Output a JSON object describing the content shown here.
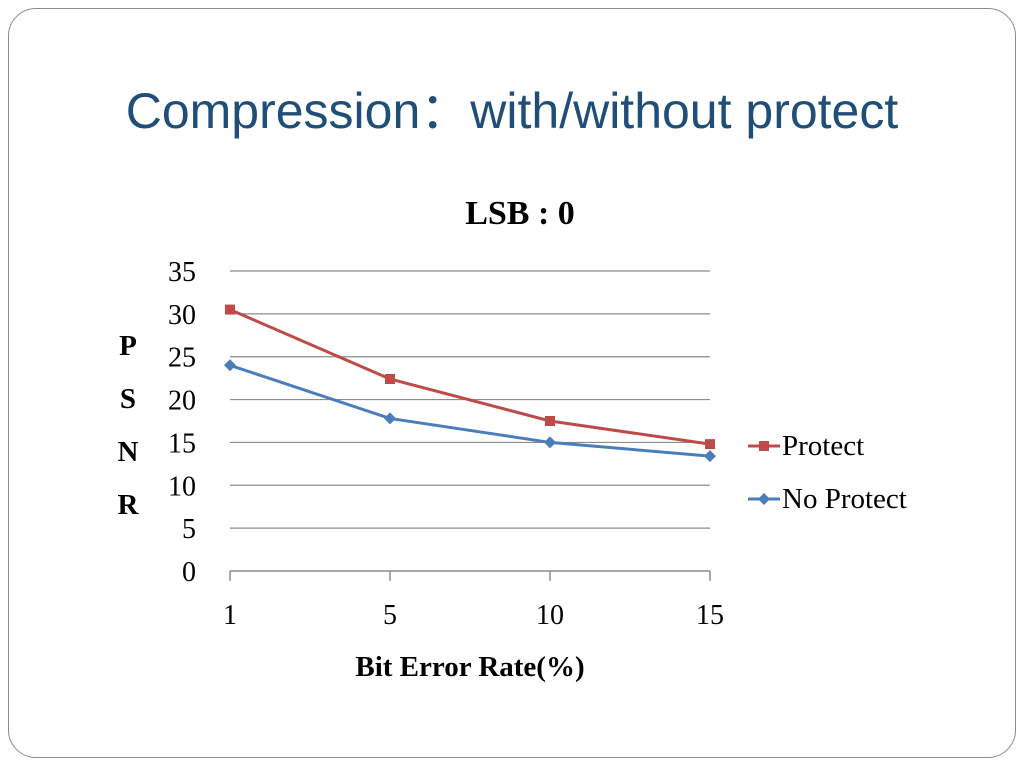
{
  "slide": {
    "title": "Compression：with/without protect"
  },
  "chart_data": {
    "type": "line",
    "title": "LSB : 0",
    "xlabel": "Bit Error Rate(%)",
    "ylabel_letters": [
      "P",
      "S",
      "N",
      "R"
    ],
    "categories": [
      "1",
      "5",
      "10",
      "15"
    ],
    "yticks": [
      "0",
      "5",
      "10",
      "15",
      "20",
      "25",
      "30",
      "35"
    ],
    "ylim": [
      0,
      35
    ],
    "grid": true,
    "legend_position": "right",
    "series": [
      {
        "name": "Protect",
        "values": [
          30.5,
          22.4,
          17.5,
          14.8
        ],
        "color": "#be4b48",
        "marker": "square"
      },
      {
        "name": "No Protect",
        "values": [
          24.0,
          17.8,
          15.0,
          13.4
        ],
        "color": "#4a7ebb",
        "marker": "diamond"
      }
    ]
  }
}
